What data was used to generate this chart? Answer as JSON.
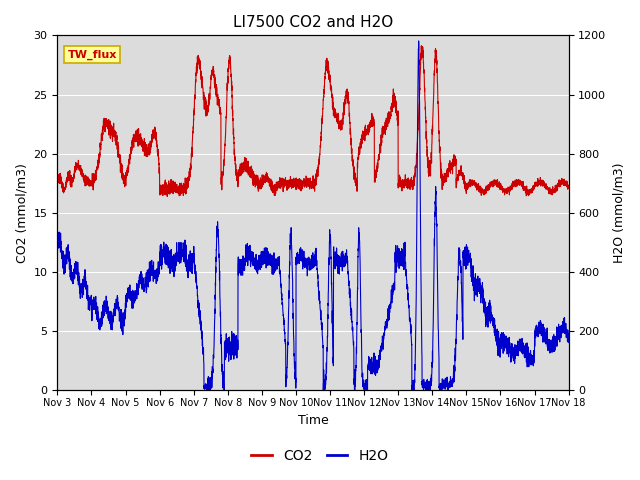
{
  "title": "LI7500 CO2 and H2O",
  "xlabel": "Time",
  "ylabel_left": "CO2 (mmol/m3)",
  "ylabel_right": "H2O (mmol/m3)",
  "site_label": "TW_flux",
  "xlim": [
    0,
    15
  ],
  "ylim_co2": [
    0,
    30
  ],
  "ylim_h2o": [
    0,
    1200
  ],
  "x_tick_labels": [
    "Nov 3",
    "Nov 4",
    "Nov 5",
    "Nov 6",
    "Nov 7",
    "Nov 8",
    "Nov 9",
    "Nov 10",
    "Nov 11",
    "Nov 12",
    "Nov 13",
    "Nov 14",
    "Nov 15",
    "Nov 16",
    "Nov 17",
    "Nov 18"
  ],
  "co2_color": "#cc0000",
  "h2o_color": "#0000cc",
  "bg_color": "#dcdcdc",
  "legend_co2": "CO2",
  "legend_h2o": "H2O",
  "site_box_facecolor": "#ffff99",
  "site_box_edgecolor": "#ccaa00",
  "site_text_color": "#cc0000",
  "grid_color": "#ffffff",
  "fig_facecolor": "#ffffff",
  "title_fontsize": 11,
  "label_fontsize": 9,
  "tick_fontsize": 8,
  "legend_fontsize": 10,
  "linewidth": 0.8
}
